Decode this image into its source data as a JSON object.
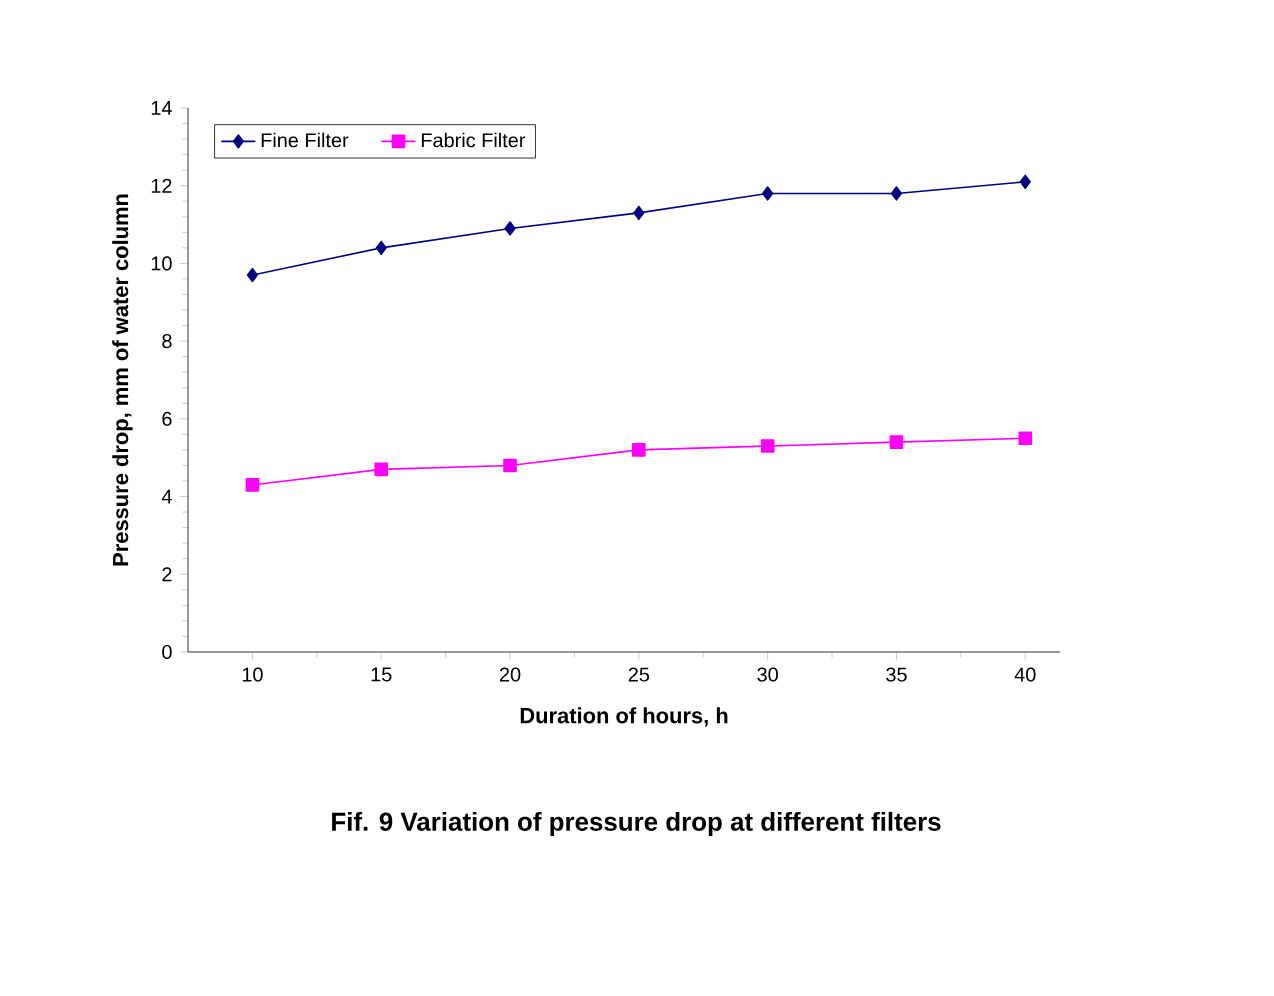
{
  "chart_data": {
    "type": "line",
    "xlabel": "Duration of hours, h",
    "ylabel": "Pressure drop, mm of water column",
    "annotations": [
      "Fif. 9 Variation of pressure drop at different filters"
    ],
    "categories": [
      "10",
      "15",
      "20",
      "25",
      "30",
      "35",
      "40"
    ],
    "series": [
      {
        "name": "Fine Filter",
        "color": "#000080",
        "marker": "diamond",
        "values": [
          9.7,
          10.4,
          10.9,
          11.3,
          11.8,
          11.8,
          12.1
        ]
      },
      {
        "name": "Fabric Filter",
        "color": "#ff00ff",
        "marker": "square",
        "values": [
          4.3,
          4.7,
          4.8,
          5.2,
          5.3,
          5.4,
          5.5
        ]
      }
    ],
    "ylim": [
      0,
      14
    ],
    "yticks": [
      0,
      2,
      4,
      6,
      8,
      10,
      12,
      14
    ],
    "grid": false,
    "legend": "top left",
    "line_style": "solid"
  }
}
